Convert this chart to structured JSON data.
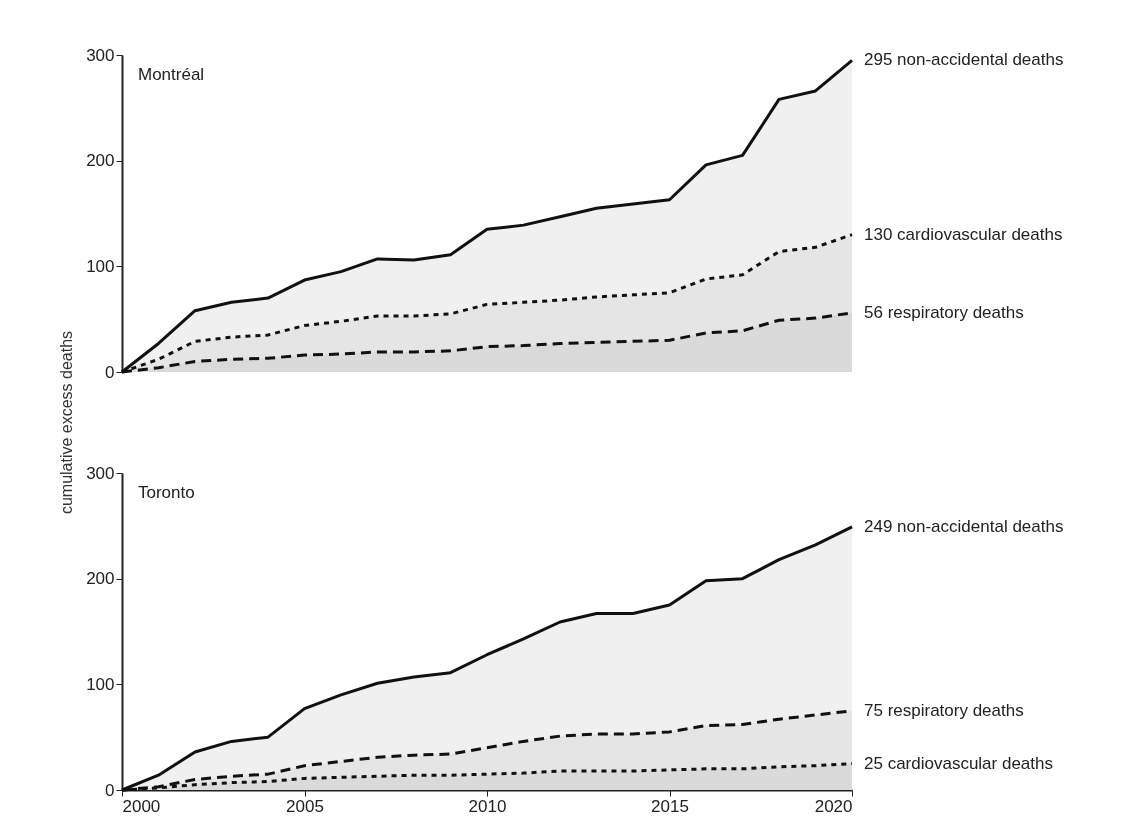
{
  "chart_data": [
    {
      "type": "area",
      "title": "Montréal",
      "ylabel": "cumulative excess deaths",
      "x": [
        2000,
        2001,
        2002,
        2003,
        2004,
        2005,
        2006,
        2007,
        2008,
        2009,
        2010,
        2011,
        2012,
        2013,
        2014,
        2015,
        2016,
        2017,
        2018,
        2019,
        2020
      ],
      "series": [
        {
          "name": "295 non-accidental deaths",
          "color": "#f0f0f0",
          "line_style": "solid",
          "values": [
            0,
            27,
            58,
            66,
            70,
            87,
            95,
            107,
            106,
            111,
            135,
            139,
            147,
            155,
            159,
            163,
            196,
            205,
            258,
            266,
            295
          ]
        },
        {
          "name": "130 cardiovascular deaths",
          "color": "#e5e5e5",
          "line_style": "dotted",
          "values": [
            0,
            12,
            29,
            33,
            35,
            44,
            48,
            53,
            53,
            55,
            64,
            66,
            68,
            71,
            73,
            75,
            88,
            92,
            114,
            118,
            130
          ]
        },
        {
          "name": "56 respiratory deaths",
          "color": "#dadada",
          "line_style": "dashed",
          "values": [
            0,
            4,
            10,
            12,
            13,
            16,
            17,
            19,
            19,
            20,
            24,
            25,
            27,
            28,
            29,
            30,
            37,
            39,
            49,
            51,
            56
          ]
        }
      ],
      "xlim": [
        2000,
        2020
      ],
      "ylim": [
        0,
        300
      ],
      "yticks": [
        0,
        100,
        200,
        300
      ],
      "tick_labels": "y",
      "marker": "none"
    },
    {
      "type": "area",
      "title": "Toronto",
      "x": [
        2000,
        2001,
        2002,
        2003,
        2004,
        2005,
        2006,
        2007,
        2008,
        2009,
        2010,
        2011,
        2012,
        2013,
        2014,
        2015,
        2016,
        2017,
        2018,
        2019,
        2020
      ],
      "series": [
        {
          "name": "249 non-accidental deaths",
          "color": "#f0f0f0",
          "line_style": "solid",
          "values": [
            0,
            14,
            36,
            46,
            50,
            77,
            90,
            101,
            107,
            111,
            128,
            143,
            159,
            167,
            167,
            175,
            198,
            200,
            218,
            232,
            249
          ]
        },
        {
          "name": "75 respiratory deaths",
          "color": "#e5e5e5",
          "line_style": "dashed",
          "values": [
            0,
            3,
            10,
            13,
            15,
            23,
            27,
            31,
            33,
            34,
            40,
            46,
            51,
            53,
            53,
            55,
            61,
            62,
            67,
            71,
            75
          ]
        },
        {
          "name": "25 cardiovascular deaths",
          "color": "#dadada",
          "line_style": "dotted",
          "values": [
            0,
            2,
            5,
            7,
            8,
            11,
            12,
            13,
            14,
            14,
            15,
            16,
            18,
            18,
            18,
            19,
            20,
            20,
            22,
            23,
            25
          ]
        }
      ],
      "xlim": [
        2000,
        2020
      ],
      "xticks": [
        2000,
        2005,
        2010,
        2015,
        2020
      ],
      "ylim": [
        0,
        300
      ],
      "yticks": [
        0,
        100,
        200,
        300
      ],
      "marker": "none"
    }
  ]
}
